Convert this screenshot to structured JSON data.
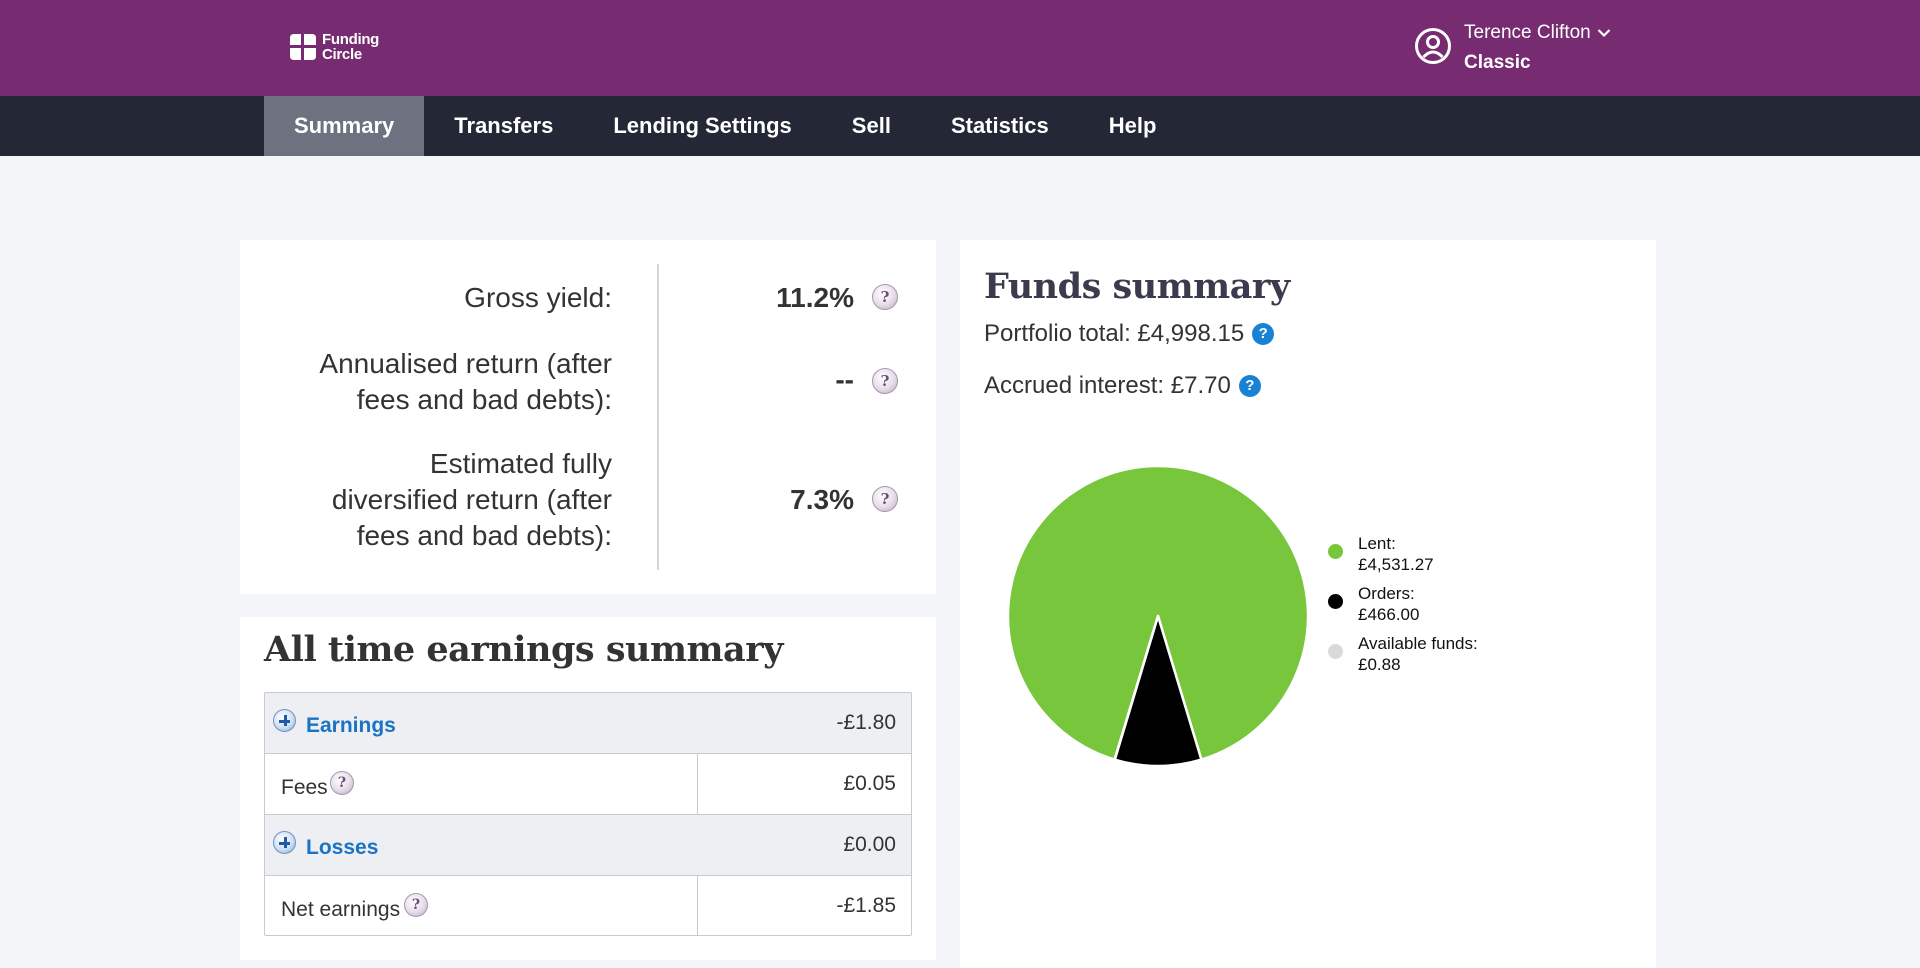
{
  "header": {
    "logo_text_line1": "Funding",
    "logo_text_line2": "Circle",
    "user_name": "Terence Clifton",
    "user_plan": "Classic"
  },
  "nav": {
    "items": [
      {
        "label": "Summary",
        "active": true
      },
      {
        "label": "Transfers",
        "active": false
      },
      {
        "label": "Lending Settings",
        "active": false
      },
      {
        "label": "Sell",
        "active": false
      },
      {
        "label": "Statistics",
        "active": false
      },
      {
        "label": "Help",
        "active": false
      }
    ]
  },
  "yields": {
    "gross_label": "Gross yield:",
    "gross_value": "11.2%",
    "annualised_label_1": "Annualised return (after",
    "annualised_label_2": "fees and bad debts):",
    "annualised_value": "--",
    "estimated_label_1": "Estimated fully",
    "estimated_label_2": "diversified return (after",
    "estimated_label_3": "fees and bad debts):",
    "estimated_value": "7.3%",
    "help_glyph": "?"
  },
  "earnings": {
    "title": "All time earnings summary",
    "rows": [
      {
        "label": "Earnings",
        "value": "-£1.80"
      },
      {
        "label": "Fees",
        "value": "£0.05"
      },
      {
        "label": "Losses",
        "value": "£0.00"
      },
      {
        "label": "Net earnings",
        "value": "-£1.85"
      }
    ]
  },
  "funds": {
    "title": "Funds summary",
    "portfolio_total": "Portfolio total: £4,998.15",
    "accrued_interest": "Accrued interest: £7.70",
    "legend": [
      {
        "label": "Lent:",
        "value": "£4,531.27",
        "color": "#78c63b"
      },
      {
        "label": "Orders:",
        "value": "£466.00",
        "color": "#000000"
      },
      {
        "label": "Available funds:",
        "value": "£0.88",
        "color": "#d9d9d9"
      }
    ]
  },
  "chart_data": {
    "type": "pie",
    "categories": [
      "Lent",
      "Orders",
      "Available funds"
    ],
    "values": [
      4531.27,
      466.0,
      0.88
    ],
    "colors": [
      "#78c63b",
      "#000000",
      "#d9d9d9"
    ],
    "title": "",
    "legend_position": "right"
  }
}
